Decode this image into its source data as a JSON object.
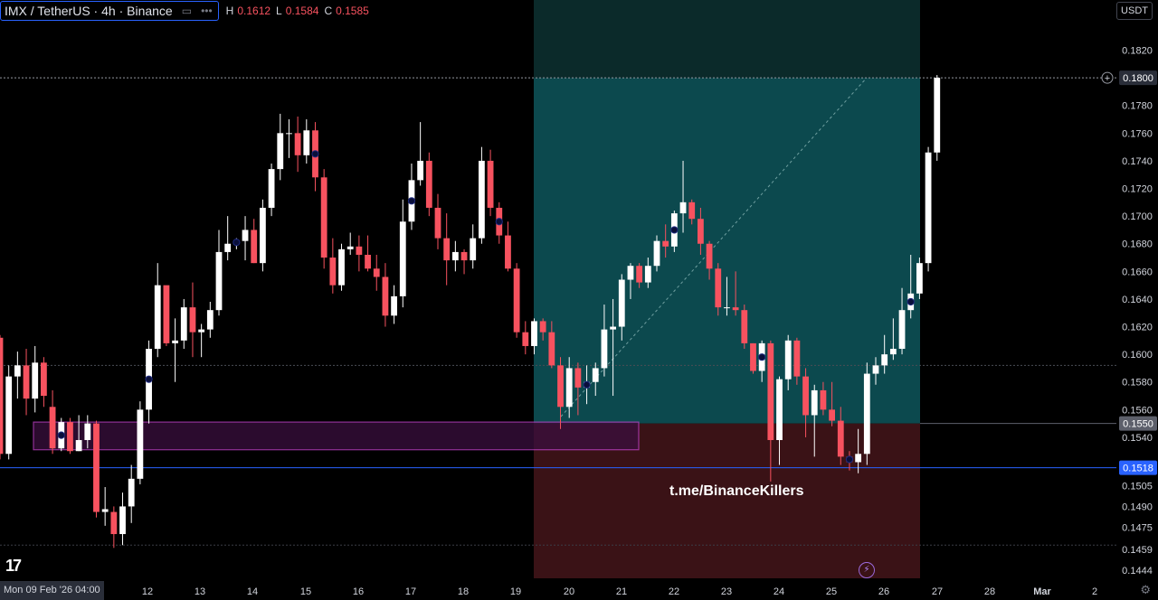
{
  "legend": {
    "symbol": "IMX / TetherUS · 4h · Binance",
    "more_icon": "more-dots-icon",
    "h_label": "H",
    "h_value": "0.1612",
    "l_label": "L",
    "l_value": "0.1584",
    "c_label": "C",
    "c_value": "0.1585"
  },
  "currency": "USDT",
  "date_tag": "Mon 09 Feb '26  04:00",
  "watermark": "t.me/BinanceKillers",
  "colors": {
    "up": "#ffffff",
    "down": "#f7525f",
    "background": "#000000",
    "target_zone": "#0d4d52",
    "stop_zone": "#3a1216",
    "demand_box": "#c040c8",
    "blue_line": "#2962ff"
  },
  "chart_data": {
    "type": "candlestick",
    "title": "IMX / TetherUS · 4h · Binance",
    "ylim": [
      0.1438,
      0.1838
    ],
    "y_ticks": [
      "0.1820",
      "0.1800",
      "0.1780",
      "0.1760",
      "0.1740",
      "0.1720",
      "0.1700",
      "0.1680",
      "0.1660",
      "0.1640",
      "0.1620",
      "0.1600",
      "0.1580",
      "0.1560",
      "0.1550",
      "0.1540",
      "0.1518",
      "0.1505",
      "0.1490",
      "0.1475",
      "0.1459",
      "0.1444"
    ],
    "x_ticks": [
      "12",
      "13",
      "14",
      "15",
      "16",
      "17",
      "18",
      "19",
      "20",
      "21",
      "22",
      "23",
      "24",
      "25",
      "26",
      "27",
      "28",
      "Mar",
      "2"
    ],
    "price_labels": [
      {
        "value": "0.1800",
        "style": "current"
      },
      {
        "value": "0.1550",
        "style": "gray"
      },
      {
        "value": "0.1518",
        "style": "blue"
      }
    ],
    "grid": false,
    "candles": [
      [
        0.1612,
        0.1614,
        0.1524,
        0.1528
      ],
      [
        0.1528,
        0.1592,
        0.1524,
        0.1584
      ],
      [
        0.1584,
        0.1602,
        0.1568,
        0.1592
      ],
      [
        0.1592,
        0.1604,
        0.1556,
        0.1568
      ],
      [
        0.1568,
        0.1606,
        0.1558,
        0.1594
      ],
      [
        0.1594,
        0.1598,
        0.1562,
        0.157
      ],
      [
        0.1562,
        0.1574,
        0.1528,
        0.1532
      ],
      [
        0.1532,
        0.1554,
        0.153,
        0.1551
      ],
      [
        0.1551,
        0.1554,
        0.1528,
        0.153
      ],
      [
        0.153,
        0.1556,
        0.153,
        0.1538
      ],
      [
        0.1538,
        0.1556,
        0.1532,
        0.155
      ],
      [
        0.155,
        0.1552,
        0.1482,
        0.1486
      ],
      [
        0.1486,
        0.1504,
        0.1476,
        0.1488
      ],
      [
        0.1486,
        0.149,
        0.146,
        0.147
      ],
      [
        0.147,
        0.15,
        0.1462,
        0.149
      ],
      [
        0.149,
        0.152,
        0.1478,
        0.151
      ],
      [
        0.151,
        0.1566,
        0.1506,
        0.156
      ],
      [
        0.156,
        0.161,
        0.155,
        0.1604
      ],
      [
        0.1604,
        0.1666,
        0.1598,
        0.165
      ],
      [
        0.165,
        0.1648,
        0.1606,
        0.1608
      ],
      [
        0.1608,
        0.1626,
        0.158,
        0.161
      ],
      [
        0.161,
        0.164,
        0.1604,
        0.1634
      ],
      [
        0.1634,
        0.1652,
        0.1598,
        0.1616
      ],
      [
        0.1616,
        0.1622,
        0.1598,
        0.1618
      ],
      [
        0.1618,
        0.1638,
        0.1612,
        0.1632
      ],
      [
        0.1632,
        0.169,
        0.1628,
        0.1674
      ],
      [
        0.1674,
        0.17,
        0.1668,
        0.168
      ],
      [
        0.168,
        0.1684,
        0.1676,
        0.1682
      ],
      [
        0.1682,
        0.17,
        0.1668,
        0.169
      ],
      [
        0.169,
        0.1698,
        0.1666,
        0.1666
      ],
      [
        0.1666,
        0.1712,
        0.166,
        0.1706
      ],
      [
        0.1706,
        0.1738,
        0.17,
        0.1734
      ],
      [
        0.1734,
        0.1774,
        0.1726,
        0.176
      ],
      [
        0.176,
        0.177,
        0.1742,
        0.176
      ],
      [
        0.176,
        0.1772,
        0.1732,
        0.1744
      ],
      [
        0.1744,
        0.177,
        0.1738,
        0.1762
      ],
      [
        0.1762,
        0.1768,
        0.1718,
        0.1728
      ],
      [
        0.1728,
        0.1734,
        0.1662,
        0.167
      ],
      [
        0.167,
        0.1684,
        0.1644,
        0.165
      ],
      [
        0.165,
        0.168,
        0.1646,
        0.1676
      ],
      [
        0.1676,
        0.1688,
        0.1672,
        0.1678
      ],
      [
        0.1678,
        0.1686,
        0.166,
        0.1672
      ],
      [
        0.1672,
        0.1686,
        0.166,
        0.1662
      ],
      [
        0.1662,
        0.1672,
        0.1646,
        0.1656
      ],
      [
        0.1656,
        0.1666,
        0.162,
        0.1628
      ],
      [
        0.1628,
        0.165,
        0.1622,
        0.1642
      ],
      [
        0.1642,
        0.1712,
        0.1634,
        0.1696
      ],
      [
        0.1696,
        0.1738,
        0.169,
        0.1726
      ],
      [
        0.1726,
        0.1768,
        0.1722,
        0.174
      ],
      [
        0.174,
        0.1746,
        0.17,
        0.1706
      ],
      [
        0.1706,
        0.1716,
        0.1676,
        0.1684
      ],
      [
        0.1684,
        0.1702,
        0.165,
        0.1668
      ],
      [
        0.1668,
        0.1682,
        0.166,
        0.1674
      ],
      [
        0.1674,
        0.1676,
        0.1658,
        0.1668
      ],
      [
        0.1668,
        0.1694,
        0.1662,
        0.1684
      ],
      [
        0.1684,
        0.175,
        0.168,
        0.174
      ],
      [
        0.174,
        0.1748,
        0.17,
        0.1706
      ],
      [
        0.1706,
        0.171,
        0.168,
        0.1686
      ],
      [
        0.1686,
        0.1696,
        0.166,
        0.1662
      ],
      [
        0.1662,
        0.1666,
        0.1612,
        0.1616
      ],
      [
        0.1616,
        0.1624,
        0.16,
        0.1606
      ],
      [
        0.1606,
        0.1626,
        0.16,
        0.1624
      ],
      [
        0.1624,
        0.1626,
        0.161,
        0.1616
      ],
      [
        0.1616,
        0.1624,
        0.159,
        0.1592
      ],
      [
        0.1592,
        0.1598,
        0.1546,
        0.1562
      ],
      [
        0.1562,
        0.1598,
        0.1554,
        0.159
      ],
      [
        0.159,
        0.1594,
        0.1556,
        0.1576
      ],
      [
        0.1576,
        0.1592,
        0.1564,
        0.158
      ],
      [
        0.158,
        0.1594,
        0.157,
        0.159
      ],
      [
        0.159,
        0.1636,
        0.1584,
        0.1618
      ],
      [
        0.1618,
        0.164,
        0.157,
        0.162
      ],
      [
        0.162,
        0.1658,
        0.161,
        0.1654
      ],
      [
        0.1654,
        0.1666,
        0.164,
        0.1664
      ],
      [
        0.1664,
        0.1666,
        0.1648,
        0.1652
      ],
      [
        0.1652,
        0.167,
        0.1648,
        0.1664
      ],
      [
        0.1664,
        0.1686,
        0.166,
        0.1682
      ],
      [
        0.1682,
        0.1694,
        0.167,
        0.1678
      ],
      [
        0.1678,
        0.1704,
        0.1674,
        0.1702
      ],
      [
        0.1702,
        0.174,
        0.1688,
        0.171
      ],
      [
        0.171,
        0.1712,
        0.1694,
        0.1698
      ],
      [
        0.1698,
        0.1706,
        0.1672,
        0.168
      ],
      [
        0.168,
        0.1682,
        0.1654,
        0.1662
      ],
      [
        0.1662,
        0.1666,
        0.1628,
        0.1634
      ],
      [
        0.1634,
        0.1656,
        0.1628,
        0.1634
      ],
      [
        0.1634,
        0.166,
        0.1628,
        0.1632
      ],
      [
        0.1632,
        0.1636,
        0.1604,
        0.1608
      ],
      [
        0.1608,
        0.1608,
        0.1586,
        0.1588
      ],
      [
        0.1588,
        0.161,
        0.158,
        0.1608
      ],
      [
        0.1608,
        0.161,
        0.1508,
        0.1538
      ],
      [
        0.1538,
        0.1584,
        0.152,
        0.1582
      ],
      [
        0.1582,
        0.1614,
        0.1574,
        0.161
      ],
      [
        0.161,
        0.1612,
        0.1578,
        0.1584
      ]
    ],
    "recent_candles": [
      [
        0.1584,
        0.159,
        0.154,
        0.1556
      ],
      [
        0.1556,
        0.1578,
        0.1526,
        0.1574
      ],
      [
        0.1574,
        0.158,
        0.1556,
        0.156
      ],
      [
        0.156,
        0.158,
        0.1548,
        0.1552
      ],
      [
        0.1552,
        0.1562,
        0.152,
        0.1526
      ],
      [
        0.1526,
        0.153,
        0.1516,
        0.1522
      ],
      [
        0.1522,
        0.1546,
        0.1514,
        0.1528
      ],
      [
        0.1528,
        0.1594,
        0.152,
        0.1586
      ],
      [
        0.1586,
        0.1598,
        0.1578,
        0.1592
      ],
      [
        0.1592,
        0.1614,
        0.1586,
        0.16
      ],
      [
        0.16,
        0.1626,
        0.1596,
        0.1604
      ],
      [
        0.1604,
        0.1648,
        0.16,
        0.1632
      ],
      [
        0.1632,
        0.1672,
        0.1626,
        0.1644
      ],
      [
        0.1644,
        0.167,
        0.164,
        0.1666
      ],
      [
        0.1666,
        0.175,
        0.166,
        0.1746
      ],
      [
        0.1746,
        0.1802,
        0.174,
        0.18
      ]
    ],
    "annotations": {
      "target_zone": {
        "top": 0.18,
        "bottom": 0.155
      },
      "stop_zone": {
        "top": 0.155,
        "bottom": 0.1438
      },
      "demand_box": {
        "top": 0.1551,
        "bottom": 0.1531
      },
      "blue_line": 0.1518,
      "current_price_line": 0.18,
      "gray_dotted_line": 0.1592
    }
  }
}
